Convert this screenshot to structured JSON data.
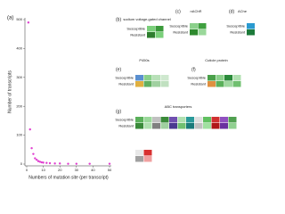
{
  "chart_data": {
    "type": "scatter",
    "label": "(a)",
    "x_label": "Numbers of mutation site (per transcript)",
    "y_label": "Number of transcripts",
    "x": [
      1,
      2,
      3,
      4,
      5,
      6,
      7,
      8,
      9,
      10,
      12,
      14,
      17,
      20,
      25,
      30,
      38,
      50
    ],
    "values": [
      490,
      120,
      55,
      35,
      20,
      15,
      10,
      8,
      6,
      5,
      4,
      3,
      2,
      2,
      1,
      1,
      1,
      1
    ],
    "color": "#e040d0",
    "xlim": [
      0,
      50
    ],
    "ylim": [
      0,
      500
    ],
    "xticks": [
      0,
      10,
      20,
      30,
      40,
      50
    ],
    "yticks": [
      0,
      100,
      200,
      300,
      400,
      500
    ]
  },
  "panels": [
    {
      "label": "(b)",
      "title": "sodium voltage-gated channel",
      "rows": [
        "Susceptible",
        "Resistant"
      ]
    },
    {
      "label": "(c)",
      "title": "nAChR",
      "rows": [
        "Susceptible",
        "Resistant"
      ]
    },
    {
      "label": "(d)",
      "title": "AChe",
      "rows": [
        "Susceptible",
        "Resistant"
      ]
    },
    {
      "label": "(e)",
      "title": "P450s",
      "rows": [
        "Susceptible",
        "Resistant"
      ]
    },
    {
      "label": "(f)",
      "title": "Cuticle protein",
      "rows": [
        "Susceptible",
        "Resistant"
      ]
    },
    {
      "label": "(g)",
      "title": "ABC transporters",
      "rows": [
        "Susceptible",
        "Resistant"
      ]
    }
  ]
}
